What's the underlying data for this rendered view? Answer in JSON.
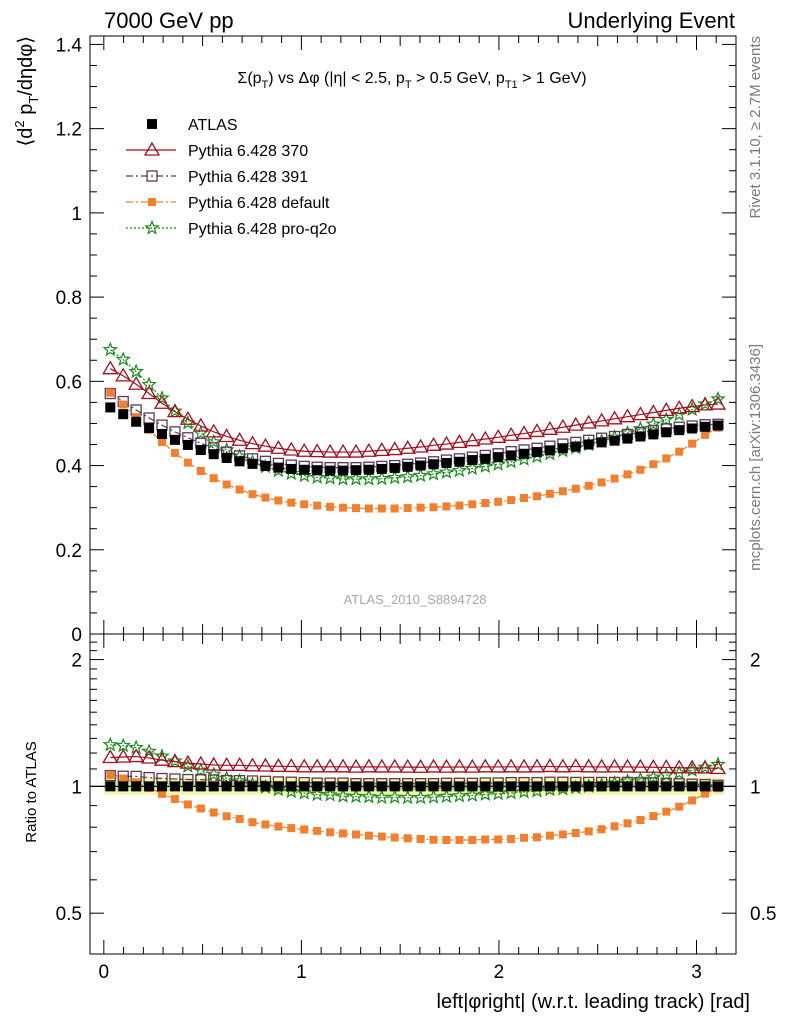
{
  "header": {
    "left": "7000 GeV pp",
    "right": "Underlying Event"
  },
  "side_labels": {
    "rivet": "Rivet 3.1.10, ≥ 2.7M events",
    "mcplots": "mcplots.cern.ch [arXiv:1306.3436]"
  },
  "chart_data": {
    "type": "scatter",
    "title": "Σ(p_T) vs Δφ (|η| < 2.5, p_T > 0.5 GeV, p_T1 > 1 GeV)",
    "title_parts": {
      "sigma": "Σ(p",
      "sub_T1": "T",
      "mid": ") vs Δφ (|η| < 2.5, p",
      "sub_T2": "T",
      "mid2": " > 0.5 GeV, p",
      "sub_T3": "T1",
      "tail": " > 1 GeV)"
    },
    "watermark": "ATLAS_2010_S8894728",
    "xlabel": "left|φright| (w.r.t. leading track) [rad]",
    "ylabel": "⟨d² p_T/dηdφ⟩",
    "ylabel_parts": {
      "pre": "⟨d",
      "sup": "2",
      "mid": " p",
      "sub": "T",
      "post": "/dηdφ⟩"
    },
    "ratio_ylabel": "Ratio to ATLAS",
    "xlim": [
      -0.07,
      3.2
    ],
    "ylim": [
      0,
      1.42
    ],
    "ratio_ylim": [
      0.4,
      2.3
    ],
    "ratio_scale": "log",
    "main_yticks": [
      "0",
      "0.2",
      "0.4",
      "0.6",
      "0.8",
      "1",
      "1.2",
      "1.4"
    ],
    "xticks": [
      "0",
      "1",
      "2",
      "3"
    ],
    "ratio_yticks": [
      "0.5",
      "1",
      "2"
    ],
    "legend_position": "top-left",
    "x": [
      0.0327,
      0.0982,
      0.1636,
      0.2291,
      0.2945,
      0.36,
      0.4254,
      0.4909,
      0.5563,
      0.6218,
      0.6872,
      0.7527,
      0.8181,
      0.8836,
      0.949,
      1.0145,
      1.0799,
      1.1454,
      1.2108,
      1.2763,
      1.3417,
      1.4072,
      1.4726,
      1.5381,
      1.6035,
      1.669,
      1.7344,
      1.7999,
      1.8653,
      1.9308,
      1.9962,
      2.0617,
      2.1271,
      2.1926,
      2.258,
      2.3235,
      2.3889,
      2.4544,
      2.5198,
      2.5853,
      2.6507,
      2.7162,
      2.7816,
      2.8471,
      2.9125,
      2.978,
      3.0434,
      3.1089
    ],
    "series": [
      {
        "name": "ATLAS",
        "color": "#000000",
        "marker": "filled-square",
        "line": "none",
        "values": [
          0.538,
          0.522,
          0.504,
          0.489,
          0.475,
          0.461,
          0.449,
          0.437,
          0.427,
          0.418,
          0.41,
          0.404,
          0.399,
          0.395,
          0.392,
          0.39,
          0.389,
          0.388,
          0.388,
          0.389,
          0.39,
          0.392,
          0.394,
          0.397,
          0.4,
          0.403,
          0.406,
          0.409,
          0.413,
          0.416,
          0.42,
          0.424,
          0.428,
          0.432,
          0.436,
          0.441,
          0.445,
          0.45,
          0.455,
          0.459,
          0.464,
          0.469,
          0.474,
          0.479,
          0.484,
          0.488,
          0.492,
          0.495
        ],
        "ratio": [
          1,
          1,
          1,
          1,
          1,
          1,
          1,
          1,
          1,
          1,
          1,
          1,
          1,
          1,
          1,
          1,
          1,
          1,
          1,
          1,
          1,
          1,
          1,
          1,
          1,
          1,
          1,
          1,
          1,
          1,
          1,
          1,
          1,
          1,
          1,
          1,
          1,
          1,
          1,
          1,
          1,
          1,
          1,
          1,
          1,
          1,
          1,
          1
        ]
      },
      {
        "name": "Pythia 6.428 370",
        "color": "#a01020",
        "marker": "open-triangle",
        "line": "solid",
        "values": [
          0.63,
          0.613,
          0.593,
          0.571,
          0.548,
          0.528,
          0.51,
          0.494,
          0.48,
          0.469,
          0.46,
          0.452,
          0.446,
          0.441,
          0.437,
          0.434,
          0.433,
          0.432,
          0.432,
          0.432,
          0.434,
          0.436,
          0.438,
          0.441,
          0.444,
          0.448,
          0.451,
          0.455,
          0.459,
          0.463,
          0.467,
          0.472,
          0.476,
          0.481,
          0.486,
          0.491,
          0.496,
          0.501,
          0.506,
          0.511,
          0.516,
          0.521,
          0.526,
          0.531,
          0.536,
          0.54,
          0.544,
          0.546
        ],
        "ratio": [
          1.171,
          1.174,
          1.177,
          1.168,
          1.154,
          1.145,
          1.136,
          1.13,
          1.124,
          1.122,
          1.122,
          1.119,
          1.118,
          1.116,
          1.115,
          1.113,
          1.113,
          1.113,
          1.113,
          1.111,
          1.113,
          1.112,
          1.112,
          1.111,
          1.11,
          1.112,
          1.111,
          1.112,
          1.111,
          1.113,
          1.112,
          1.113,
          1.112,
          1.113,
          1.115,
          1.113,
          1.115,
          1.113,
          1.112,
          1.113,
          1.112,
          1.111,
          1.11,
          1.109,
          1.107,
          1.107,
          1.106,
          1.103
        ]
      },
      {
        "name": "Pythia 6.428 391",
        "color": "#5a3a5a",
        "marker": "open-square",
        "line": "dashdot",
        "values": [
          0.571,
          0.552,
          0.532,
          0.513,
          0.496,
          0.48,
          0.466,
          0.453,
          0.442,
          0.432,
          0.423,
          0.416,
          0.41,
          0.405,
          0.401,
          0.398,
          0.396,
          0.395,
          0.395,
          0.395,
          0.396,
          0.398,
          0.4,
          0.403,
          0.406,
          0.409,
          0.413,
          0.416,
          0.42,
          0.424,
          0.428,
          0.433,
          0.437,
          0.441,
          0.446,
          0.451,
          0.455,
          0.46,
          0.465,
          0.469,
          0.474,
          0.478,
          0.483,
          0.487,
          0.491,
          0.494,
          0.497,
          0.498
        ],
        "ratio": [
          1.061,
          1.057,
          1.056,
          1.049,
          1.044,
          1.041,
          1.038,
          1.037,
          1.035,
          1.033,
          1.032,
          1.03,
          1.028,
          1.025,
          1.023,
          1.021,
          1.018,
          1.018,
          1.018,
          1.015,
          1.015,
          1.015,
          1.015,
          1.015,
          1.015,
          1.015,
          1.017,
          1.017,
          1.017,
          1.019,
          1.019,
          1.021,
          1.021,
          1.021,
          1.023,
          1.023,
          1.022,
          1.022,
          1.022,
          1.022,
          1.022,
          1.019,
          1.019,
          1.017,
          1.014,
          1.012,
          1.01,
          1.006
        ]
      },
      {
        "name": "Pythia 6.428 default",
        "color": "#f07f30",
        "marker": "filled-square-small",
        "line": "dashdot",
        "values": [
          0.573,
          0.545,
          0.515,
          0.485,
          0.456,
          0.43,
          0.407,
          0.387,
          0.37,
          0.355,
          0.343,
          0.332,
          0.324,
          0.317,
          0.312,
          0.308,
          0.305,
          0.302,
          0.3,
          0.299,
          0.298,
          0.298,
          0.298,
          0.299,
          0.3,
          0.301,
          0.303,
          0.305,
          0.308,
          0.311,
          0.314,
          0.318,
          0.323,
          0.327,
          0.333,
          0.339,
          0.345,
          0.352,
          0.36,
          0.369,
          0.379,
          0.39,
          0.403,
          0.417,
          0.433,
          0.452,
          0.473,
          0.49
        ],
        "ratio": [
          1.065,
          1.044,
          1.022,
          0.992,
          0.96,
          0.933,
          0.906,
          0.886,
          0.867,
          0.849,
          0.837,
          0.822,
          0.812,
          0.803,
          0.796,
          0.79,
          0.784,
          0.778,
          0.773,
          0.769,
          0.764,
          0.76,
          0.756,
          0.753,
          0.75,
          0.747,
          0.746,
          0.746,
          0.746,
          0.748,
          0.748,
          0.75,
          0.755,
          0.757,
          0.764,
          0.769,
          0.775,
          0.782,
          0.791,
          0.804,
          0.817,
          0.832,
          0.85,
          0.871,
          0.895,
          0.926,
          0.961,
          0.99
        ]
      },
      {
        "name": "Pythia 6.428 pro-q2o",
        "color": "#1a8a1a",
        "marker": "open-star",
        "line": "dotted",
        "values": [
          0.675,
          0.652,
          0.623,
          0.592,
          0.56,
          0.529,
          0.501,
          0.477,
          0.456,
          0.437,
          0.422,
          0.408,
          0.397,
          0.388,
          0.381,
          0.376,
          0.372,
          0.37,
          0.368,
          0.368,
          0.368,
          0.369,
          0.371,
          0.373,
          0.376,
          0.38,
          0.384,
          0.388,
          0.393,
          0.398,
          0.403,
          0.409,
          0.415,
          0.421,
          0.428,
          0.435,
          0.442,
          0.45,
          0.458,
          0.467,
          0.477,
          0.487,
          0.498,
          0.509,
          0.521,
          0.533,
          0.546,
          0.558
        ],
        "ratio": [
          1.255,
          1.249,
          1.236,
          1.211,
          1.179,
          1.148,
          1.116,
          1.092,
          1.068,
          1.045,
          1.029,
          1.01,
          0.995,
          0.982,
          0.972,
          0.964,
          0.956,
          0.954,
          0.948,
          0.946,
          0.944,
          0.941,
          0.942,
          0.94,
          0.94,
          0.943,
          0.946,
          0.949,
          0.952,
          0.957,
          0.96,
          0.965,
          0.97,
          0.975,
          0.982,
          0.986,
          0.993,
          1.0,
          1.007,
          1.017,
          1.028,
          1.038,
          1.051,
          1.063,
          1.076,
          1.092,
          1.11,
          1.127
        ]
      }
    ]
  }
}
